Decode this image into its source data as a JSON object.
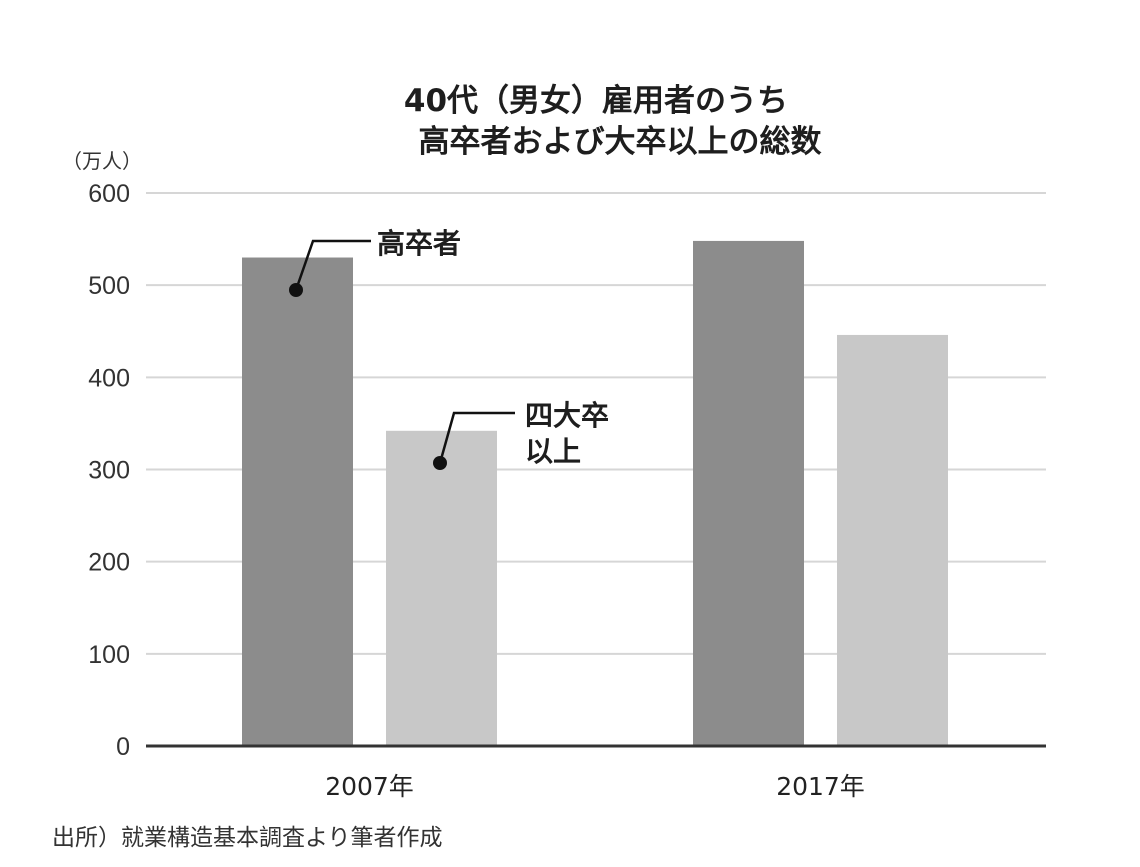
{
  "chart_data": {
    "type": "bar",
    "title_lines": [
      "40代（男女）雇用者のうち",
      "高卒者および大卒以上の総数"
    ],
    "unit": "（万人）",
    "categories": [
      "2007年",
      "2017年"
    ],
    "series": [
      {
        "name": "高卒者",
        "color": "#8c8c8c",
        "values": [
          530,
          548
        ]
      },
      {
        "name": "四大卒以上",
        "label_lines": [
          "四大卒",
          "以上"
        ],
        "color": "#c8c8c8",
        "values": [
          342,
          446
        ]
      }
    ],
    "ylim": [
      0,
      600
    ],
    "yticks": [
      0,
      100,
      200,
      300,
      400,
      500,
      600
    ],
    "grid": true,
    "legend": "inline-callouts"
  },
  "source": "出所）就業構造基本調査より筆者作成"
}
